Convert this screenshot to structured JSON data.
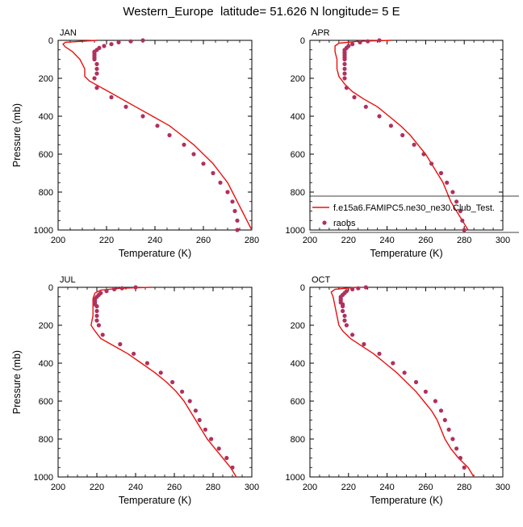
{
  "figure": {
    "title": "Western_Europe  latitude= 51.626 N longitude= 5 E"
  },
  "colors": {
    "model_line": "#e8120f",
    "raobs_marker": "#b0305e",
    "axis": "#000000"
  },
  "legend": {
    "model_label": "f.e15a6.FAMIPC5.ne30_ne30.Club_Test.",
    "obs_label": "raobs"
  },
  "chart_data": [
    {
      "type": "line",
      "panel": "JAN",
      "xlabel": "Temperature (K)",
      "ylabel": "Pressure (mb)",
      "xlim": [
        200,
        280
      ],
      "ylim": [
        1000,
        0
      ],
      "y_inverted": true,
      "xticks": [
        200,
        220,
        240,
        260,
        280
      ],
      "yticks": [
        0,
        200,
        400,
        600,
        800,
        1000
      ],
      "grid": false,
      "series": [
        {
          "name": "f.e15a6.FAMIPC5.ne30_ne30.Club_Test.",
          "style": "line",
          "points": [
            [
              216,
              0
            ],
            [
              203,
              10
            ],
            [
              202,
              20
            ],
            [
              203,
              35
            ],
            [
              206,
              60
            ],
            [
              209,
              100
            ],
            [
              211,
              150
            ],
            [
              211,
              190
            ],
            [
              213,
              215
            ],
            [
              218,
              250
            ],
            [
              225,
              300
            ],
            [
              232,
              350
            ],
            [
              239,
              400
            ],
            [
              246,
              450
            ],
            [
              251,
              500
            ],
            [
              256,
              550
            ],
            [
              260,
              600
            ],
            [
              264,
              650
            ],
            [
              267,
              700
            ],
            [
              270,
              750
            ],
            [
              272,
              800
            ],
            [
              274,
              850
            ],
            [
              276,
              900
            ],
            [
              278,
              950
            ],
            [
              280,
              1000
            ]
          ]
        },
        {
          "name": "raobs",
          "style": "markers",
          "points": [
            [
              235,
              0
            ],
            [
              230,
              5
            ],
            [
              225,
              10
            ],
            [
              222,
              20
            ],
            [
              219,
              30
            ],
            [
              217,
              40
            ],
            [
              216,
              50
            ],
            [
              215,
              60
            ],
            [
              215,
              70
            ],
            [
              215,
              80
            ],
            [
              215,
              90
            ],
            [
              215,
              100
            ],
            [
              216,
              125
            ],
            [
              216,
              150
            ],
            [
              216,
              175
            ],
            [
              215,
              200
            ],
            [
              216,
              250
            ],
            [
              222,
              300
            ],
            [
              228,
              350
            ],
            [
              235,
              400
            ],
            [
              241,
              450
            ],
            [
              246,
              500
            ],
            [
              252,
              550
            ],
            [
              256,
              600
            ],
            [
              260,
              650
            ],
            [
              264,
              700
            ],
            [
              267,
              750
            ],
            [
              270,
              800
            ],
            [
              272,
              850
            ],
            [
              273,
              900
            ],
            [
              274,
              950
            ],
            [
              274,
              1000
            ]
          ]
        }
      ]
    },
    {
      "type": "line",
      "panel": "APR",
      "xlabel": "Temperature (K)",
      "ylabel": "",
      "xlim": [
        200,
        300
      ],
      "ylim": [
        1000,
        0
      ],
      "y_inverted": true,
      "xticks": [
        200,
        220,
        240,
        260,
        280,
        300
      ],
      "yticks": [
        0,
        200,
        400,
        600,
        800,
        1000
      ],
      "grid": false,
      "legend_position": "lower-right",
      "series": [
        {
          "name": "f.e15a6.FAMIPC5.ne30_ne30.Club_Test.",
          "style": "line",
          "points": [
            [
              242,
              0
            ],
            [
              225,
              5
            ],
            [
              215,
              15
            ],
            [
              213,
              30
            ],
            [
              213,
              60
            ],
            [
              214,
              100
            ],
            [
              214,
              150
            ],
            [
              215,
              190
            ],
            [
              218,
              230
            ],
            [
              222,
              270
            ],
            [
              228,
              310
            ],
            [
              235,
              350
            ],
            [
              241,
              400
            ],
            [
              247,
              450
            ],
            [
              252,
              500
            ],
            [
              256,
              550
            ],
            [
              260,
              600
            ],
            [
              263,
              650
            ],
            [
              266,
              700
            ],
            [
              269,
              750
            ],
            [
              271,
              800
            ],
            [
              273,
              850
            ],
            [
              276,
              900
            ],
            [
              279,
              950
            ],
            [
              282,
              1000
            ]
          ]
        },
        {
          "name": "raobs",
          "style": "markers",
          "points": [
            [
              236,
              0
            ],
            [
              230,
              5
            ],
            [
              226,
              10
            ],
            [
              222,
              20
            ],
            [
              220,
              30
            ],
            [
              219,
              40
            ],
            [
              218,
              50
            ],
            [
              218,
              60
            ],
            [
              218,
              70
            ],
            [
              218,
              80
            ],
            [
              218,
              90
            ],
            [
              218,
              100
            ],
            [
              218,
              125
            ],
            [
              218,
              150
            ],
            [
              218,
              175
            ],
            [
              218,
              200
            ],
            [
              219,
              250
            ],
            [
              223,
              300
            ],
            [
              229,
              350
            ],
            [
              236,
              400
            ],
            [
              242,
              450
            ],
            [
              248,
              500
            ],
            [
              254,
              550
            ],
            [
              259,
              600
            ],
            [
              263,
              650
            ],
            [
              268,
              700
            ],
            [
              271,
              750
            ],
            [
              274,
              800
            ],
            [
              276,
              850
            ],
            [
              278,
              900
            ],
            [
              279,
              950
            ],
            [
              280,
              1000
            ]
          ]
        }
      ]
    },
    {
      "type": "line",
      "panel": "JUL",
      "xlabel": "Temperature (K)",
      "ylabel": "Pressure (mb)",
      "xlim": [
        200,
        300
      ],
      "ylim": [
        1000,
        0
      ],
      "y_inverted": true,
      "xticks": [
        200,
        220,
        240,
        260,
        280,
        300
      ],
      "yticks": [
        0,
        200,
        400,
        600,
        800,
        1000
      ],
      "grid": false,
      "series": [
        {
          "name": "f.e15a6.FAMIPC5.ne30_ne30.Club_Test.",
          "style": "line",
          "points": [
            [
              248,
              0
            ],
            [
              232,
              5
            ],
            [
              222,
              15
            ],
            [
              219,
              30
            ],
            [
              218,
              60
            ],
            [
              218,
              100
            ],
            [
              218,
              150
            ],
            [
              217,
              200
            ],
            [
              219,
              230
            ],
            [
              222,
              270
            ],
            [
              229,
              310
            ],
            [
              236,
              350
            ],
            [
              243,
              400
            ],
            [
              250,
              450
            ],
            [
              256,
              500
            ],
            [
              261,
              550
            ],
            [
              265,
              600
            ],
            [
              268,
              650
            ],
            [
              271,
              700
            ],
            [
              274,
              750
            ],
            [
              277,
              800
            ],
            [
              281,
              850
            ],
            [
              285,
              900
            ],
            [
              289,
              950
            ],
            [
              292,
              1000
            ]
          ]
        },
        {
          "name": "raobs",
          "style": "markers",
          "points": [
            [
              240,
              0
            ],
            [
              233,
              5
            ],
            [
              229,
              10
            ],
            [
              225,
              20
            ],
            [
              222,
              30
            ],
            [
              221,
              40
            ],
            [
              220,
              50
            ],
            [
              219,
              60
            ],
            [
              219,
              70
            ],
            [
              219,
              80
            ],
            [
              219,
              90
            ],
            [
              220,
              100
            ],
            [
              220,
              125
            ],
            [
              220,
              150
            ],
            [
              220,
              175
            ],
            [
              221,
              200
            ],
            [
              223,
              250
            ],
            [
              232,
              300
            ],
            [
              239,
              350
            ],
            [
              246,
              400
            ],
            [
              253,
              450
            ],
            [
              259,
              500
            ],
            [
              264,
              550
            ],
            [
              268,
              600
            ],
            [
              271,
              650
            ],
            [
              273,
              700
            ],
            [
              276,
              750
            ],
            [
              279,
              800
            ],
            [
              283,
              850
            ],
            [
              287,
              900
            ],
            [
              290,
              950
            ]
          ]
        }
      ]
    },
    {
      "type": "line",
      "panel": "OCT",
      "xlabel": "Temperature (K)",
      "ylabel": "",
      "xlim": [
        200,
        300
      ],
      "ylim": [
        1000,
        0
      ],
      "y_inverted": true,
      "xticks": [
        200,
        220,
        240,
        260,
        280,
        300
      ],
      "yticks": [
        0,
        200,
        400,
        600,
        800,
        1000
      ],
      "grid": false,
      "series": [
        {
          "name": "f.e15a6.FAMIPC5.ne30_ne30.Club_Test.",
          "style": "line",
          "points": [
            [
              224,
              0
            ],
            [
              213,
              10
            ],
            [
              211,
              25
            ],
            [
              212,
              50
            ],
            [
              213,
              100
            ],
            [
              214,
              150
            ],
            [
              215,
              200
            ],
            [
              217,
              230
            ],
            [
              221,
              270
            ],
            [
              227,
              310
            ],
            [
              233,
              350
            ],
            [
              239,
              400
            ],
            [
              245,
              450
            ],
            [
              250,
              500
            ],
            [
              255,
              550
            ],
            [
              259,
              600
            ],
            [
              263,
              650
            ],
            [
              266,
              700
            ],
            [
              268,
              750
            ],
            [
              270,
              800
            ],
            [
              273,
              850
            ],
            [
              277,
              900
            ],
            [
              282,
              950
            ],
            [
              285,
              1000
            ]
          ]
        },
        {
          "name": "raobs",
          "style": "markers",
          "points": [
            [
              229,
              0
            ],
            [
              225,
              5
            ],
            [
              222,
              10
            ],
            [
              219,
              20
            ],
            [
              218,
              30
            ],
            [
              217,
              40
            ],
            [
              216,
              50
            ],
            [
              216,
              60
            ],
            [
              216,
              70
            ],
            [
              216,
              80
            ],
            [
              217,
              90
            ],
            [
              217,
              100
            ],
            [
              217,
              125
            ],
            [
              218,
              150
            ],
            [
              218,
              175
            ],
            [
              219,
              200
            ],
            [
              222,
              250
            ],
            [
              228,
              300
            ],
            [
              236,
              350
            ],
            [
              243,
              400
            ],
            [
              249,
              450
            ],
            [
              255,
              500
            ],
            [
              260,
              550
            ],
            [
              265,
              600
            ],
            [
              268,
              650
            ],
            [
              270,
              700
            ],
            [
              272,
              750
            ],
            [
              274,
              800
            ],
            [
              276,
              850
            ],
            [
              278,
              900
            ],
            [
              280,
              950
            ]
          ]
        }
      ]
    }
  ]
}
